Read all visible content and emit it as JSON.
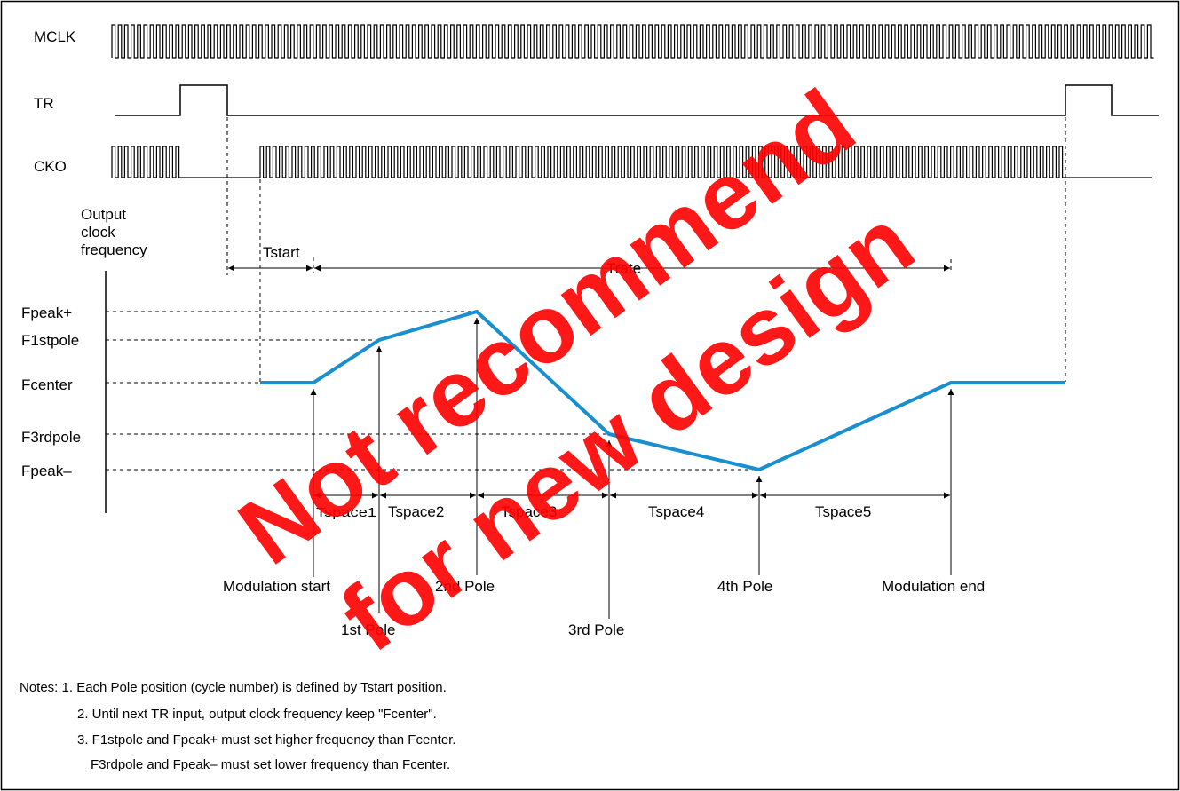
{
  "signals": {
    "mclk": "MCLK",
    "tr": "TR",
    "cko": "CKO"
  },
  "freq_axis_label": [
    "Output",
    "clock",
    "frequency"
  ],
  "intervals": {
    "tstart": "Tstart",
    "trate": "Trate",
    "tspace": [
      "Tspace1",
      "Tspace2",
      "Tspace3",
      "Tspace4",
      "Tspace5"
    ]
  },
  "levels": [
    "Fpeak+",
    "F1stpole",
    "Fcenter",
    "F3rdpole",
    "Fpeak–"
  ],
  "events": {
    "mod_start": "Modulation start",
    "pole1": "1st Pole",
    "pole2": "2nd Pole",
    "pole3": "3rd Pole",
    "pole4": "4th Pole",
    "mod_end": "Modulation end"
  },
  "notes": [
    "Notes: 1. Each Pole position (cycle number) is defined by Tstart position.",
    "2. Until next TR input, output clock frequency keep \"Fcenter\".",
    "3. F1stpole and Fpeak+ must set higher frequency than Fcenter.",
    "F3rdpole and Fpeak– must set lower frequency than Fcenter."
  ],
  "watermark": [
    "Not recommend",
    "for new design"
  ],
  "colors": {
    "frequency_curve": "#1a8fd0",
    "watermark": "#ff0000",
    "line": "#000000"
  }
}
